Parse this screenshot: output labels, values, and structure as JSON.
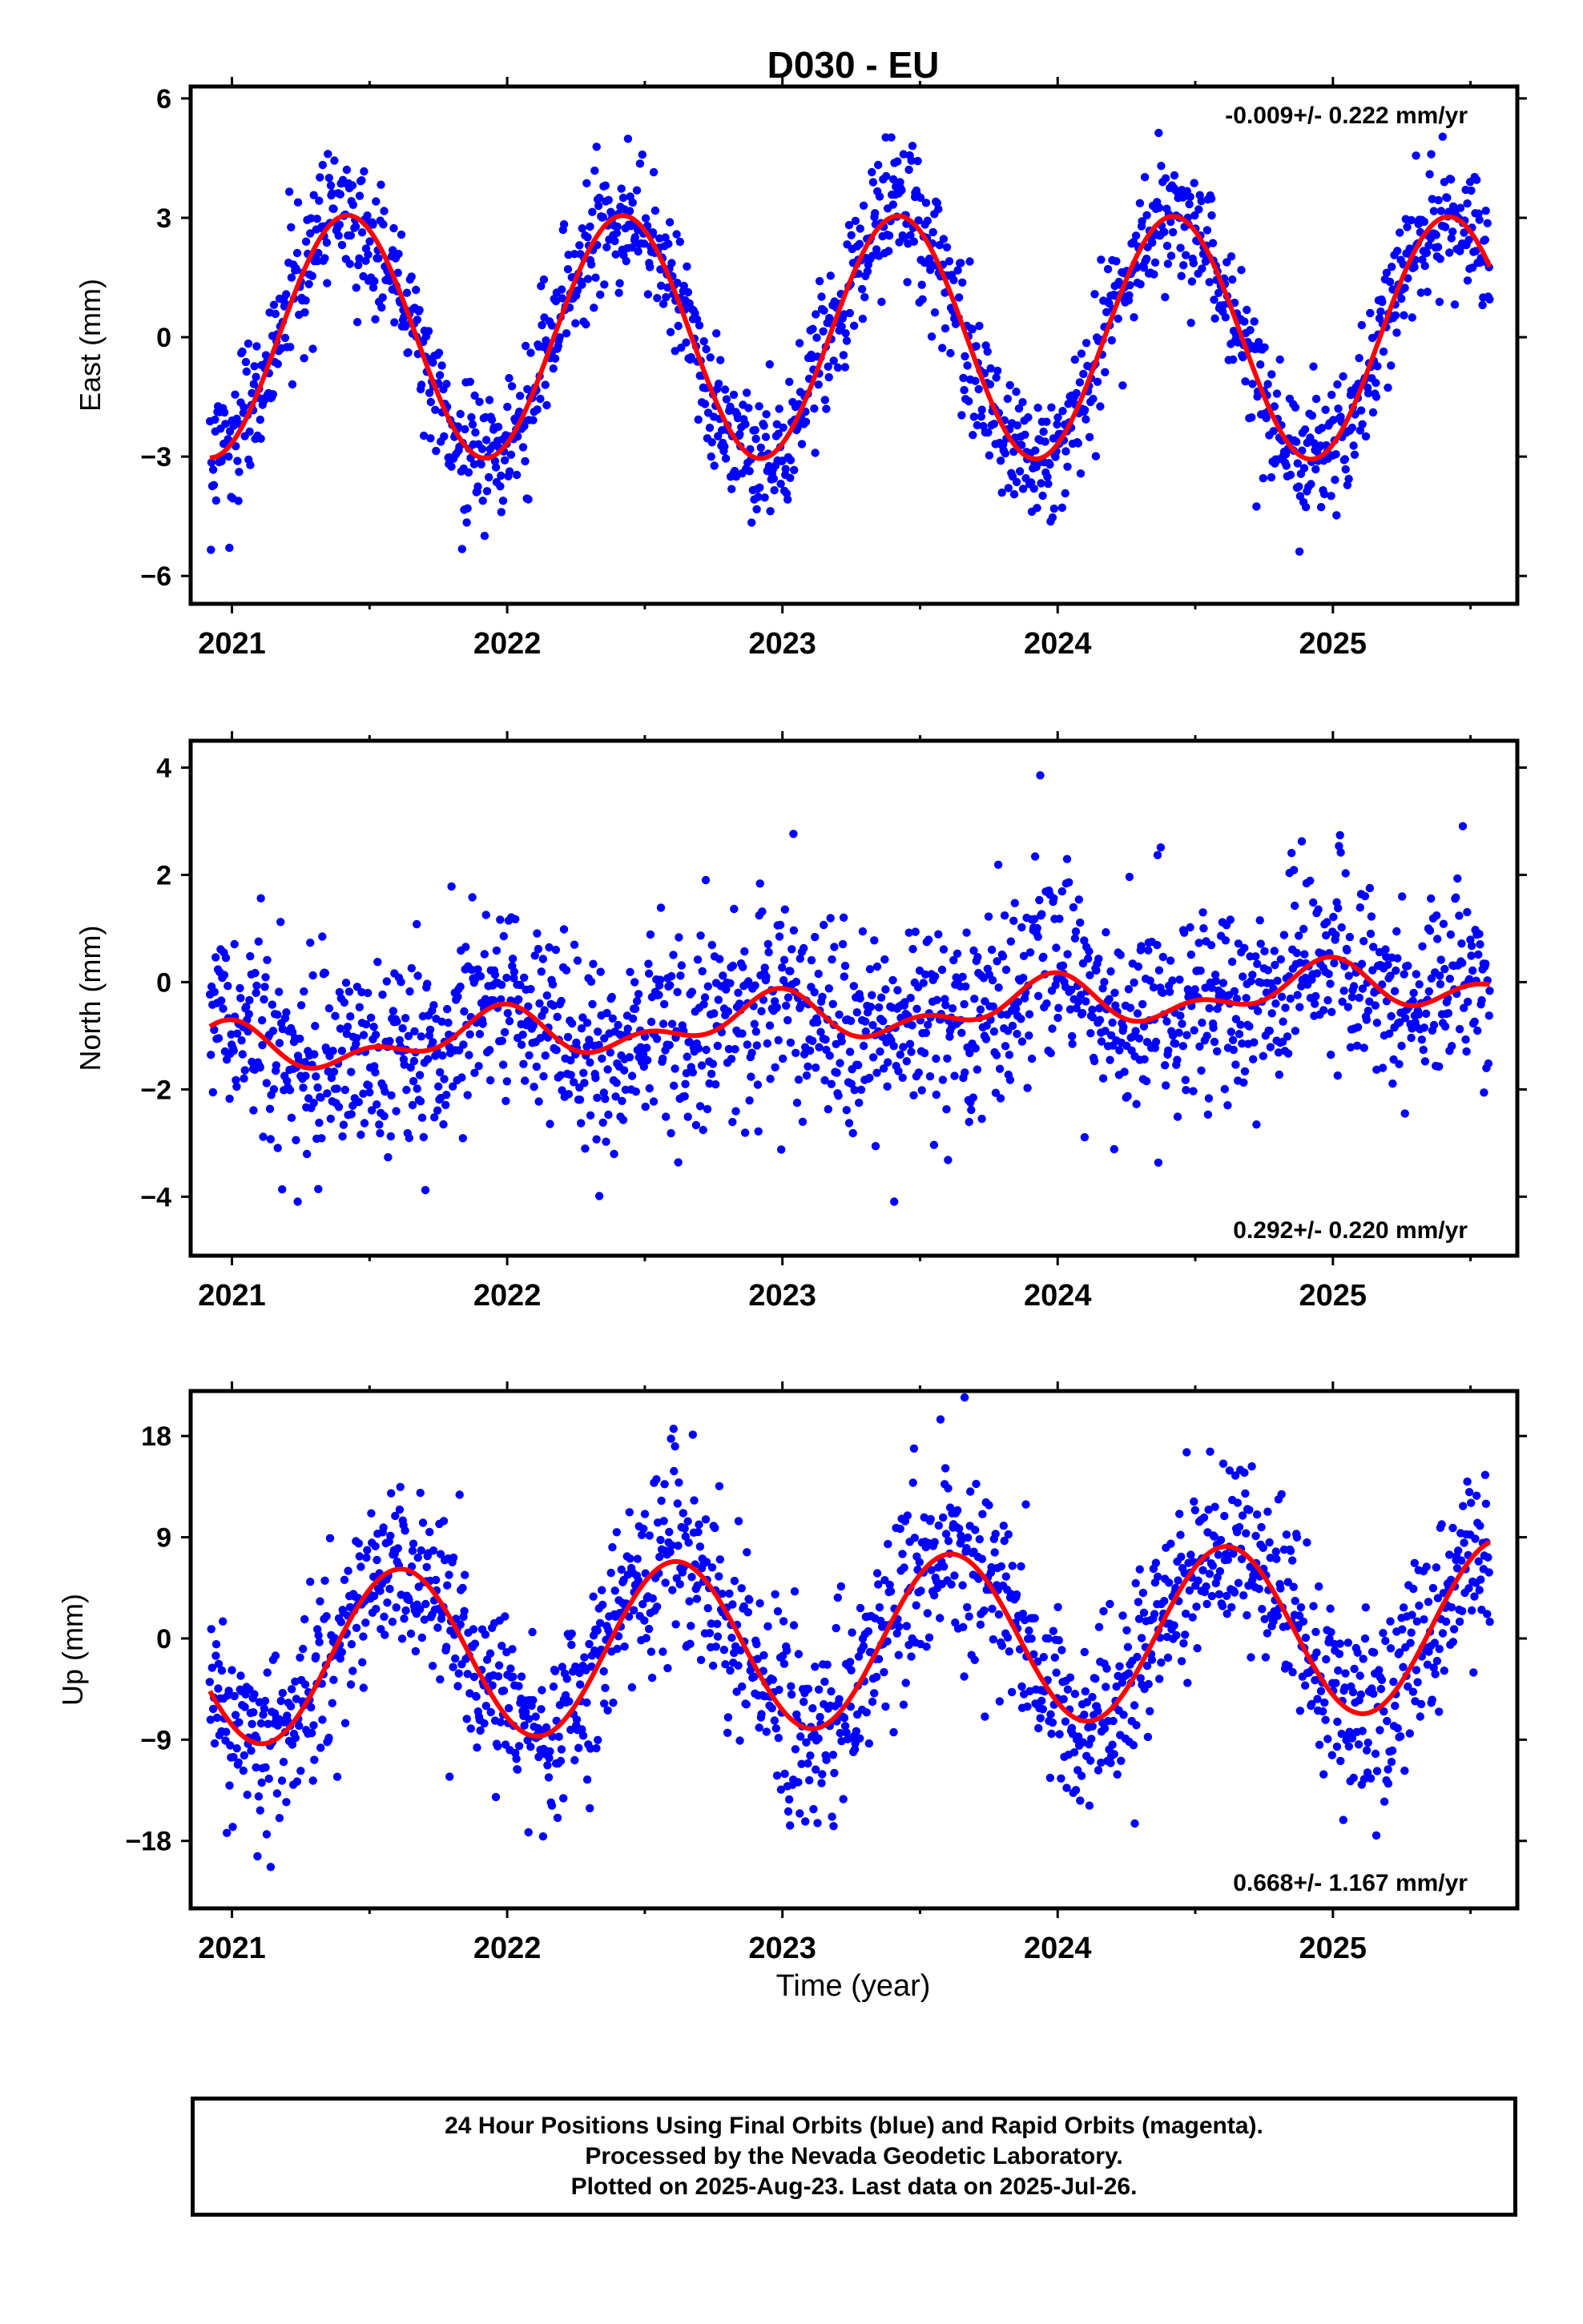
{
  "figure": {
    "title": "D030 - EU",
    "xlabel": "Time (year)",
    "footer": [
      "24 Hour Positions Using Final Orbits (blue) and Rapid Orbits (magenta).",
      "Processed by the Nevada Geodetic Laboratory.",
      "Plotted on 2025-Aug-23. Last data on 2025-Jul-26."
    ],
    "colors": {
      "points": "#0000ff",
      "model": "#ff0000",
      "frame": "#000000"
    }
  },
  "chart_data": [
    {
      "type": "scatter",
      "name": "east",
      "ylabel": "East (mm)",
      "rate_label": "-0.009+/- 0.222 mm/yr",
      "xlim": [
        2020.85,
        2025.67
      ],
      "ylim": [
        -6.7,
        6.3
      ],
      "x_ticks": [
        2021,
        2022,
        2023,
        2024,
        2025
      ],
      "x_tick_labels": [
        "2021",
        "2022",
        "2023",
        "2024",
        "2025"
      ],
      "y_ticks": [
        -6,
        -3,
        0,
        3,
        6
      ],
      "y_tick_labels": [
        "−6",
        "−3",
        "0",
        "3",
        "6"
      ],
      "model": {
        "type": "line",
        "offset": 0.0,
        "trend_per_year": -0.009,
        "annual_amp": 3.05,
        "annual_phase_peak": 0.42,
        "semi_amp": 0.0,
        "semi_phase_peak": 0.0
      },
      "scatter": {
        "first": 2020.92,
        "last": 2025.57,
        "points_per_year": 340,
        "noise_sd": 0.85
      }
    },
    {
      "type": "scatter",
      "name": "north",
      "ylabel": "North (mm)",
      "rate_label": "0.292+/- 0.220 mm/yr",
      "xlim": [
        2020.85,
        2025.67
      ],
      "ylim": [
        -5.1,
        4.5
      ],
      "x_ticks": [
        2021,
        2022,
        2023,
        2024,
        2025
      ],
      "x_tick_labels": [
        "2021",
        "2022",
        "2023",
        "2024",
        "2025"
      ],
      "y_ticks": [
        -4,
        -2,
        0,
        2,
        4
      ],
      "y_tick_labels": [
        "−4",
        "−2",
        "0",
        "2",
        "4"
      ],
      "model": {
        "type": "line",
        "offset": -0.7,
        "trend_per_year": 0.292,
        "annual_amp": 0.35,
        "annual_phase_peak": 0.95,
        "semi_amp": 0.25,
        "semi_phase_peak": 0.5
      },
      "scatter": {
        "first": 2020.92,
        "last": 2025.57,
        "points_per_year": 340,
        "noise_sd": 0.95
      }
    },
    {
      "type": "scatter",
      "name": "up",
      "ylabel": "Up (mm)",
      "rate_label": "0.668+/- 1.167 mm/yr",
      "xlim": [
        2020.85,
        2025.67
      ],
      "ylim": [
        -24,
        22
      ],
      "x_ticks": [
        2021,
        2022,
        2023,
        2024,
        2025
      ],
      "x_tick_labels": [
        "2021",
        "2022",
        "2023",
        "2024",
        "2025"
      ],
      "y_ticks": [
        -18,
        -9,
        0,
        9,
        18
      ],
      "y_tick_labels": [
        "−18",
        "−9",
        "0",
        "9",
        "18"
      ],
      "model": {
        "type": "line",
        "offset": -0.5,
        "trend_per_year": 0.668,
        "annual_amp": 7.6,
        "annual_phase_peak": 0.61,
        "semi_amp": 0.0,
        "semi_phase_peak": 0.0
      },
      "scatter": {
        "first": 2020.92,
        "last": 2025.57,
        "points_per_year": 340,
        "noise_sd": 4.2
      }
    }
  ]
}
